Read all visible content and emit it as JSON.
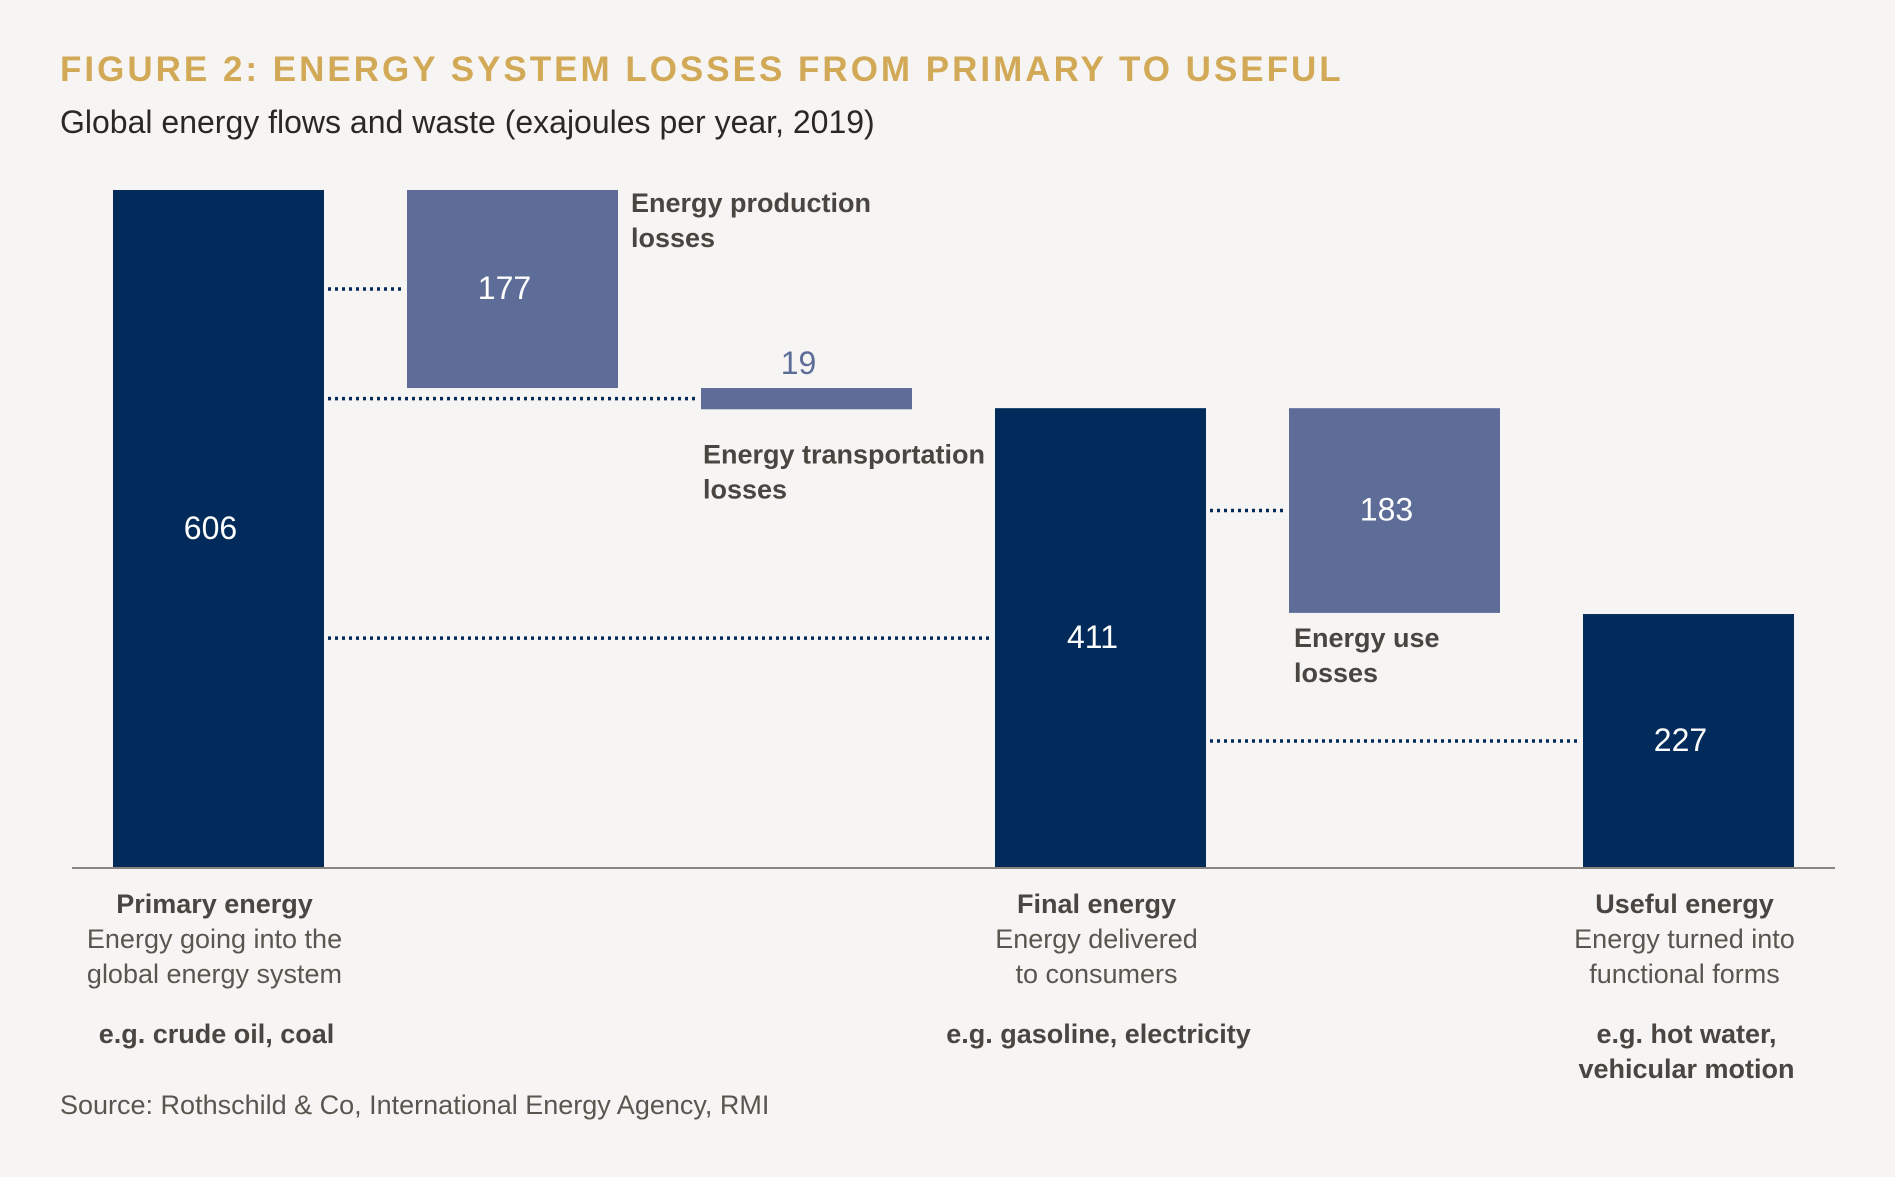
{
  "title": "FIGURE 2: ENERGY SYSTEM LOSSES FROM PRIMARY TO USEFUL",
  "subtitle": "Global energy flows and waste (exajoules per year, 2019)",
  "source": "Source: Rothschild & Co, International Energy Agency, RMI",
  "colors": {
    "total_bar": "#022a5a",
    "loss_bar": "#5e6d98",
    "loss_value_text": "#5e6d98",
    "title": "#d2a956",
    "text": "#4a4540",
    "axis": "#8a8580"
  },
  "chart_data": {
    "type": "bar",
    "subtype": "waterfall",
    "unit": "exajoules per year",
    "year": 2019,
    "ylim": [
      0,
      606
    ],
    "steps": [
      {
        "id": "primary",
        "kind": "total",
        "value": 606,
        "label": "Primary energy",
        "description": [
          "Energy going into the",
          "global energy system"
        ],
        "examples": [
          "e.g. crude oil, coal"
        ]
      },
      {
        "id": "production-losses",
        "kind": "loss",
        "value": 177,
        "label": [
          "Energy production",
          "losses"
        ]
      },
      {
        "id": "transportation-losses",
        "kind": "loss",
        "value": 19,
        "label": [
          "Energy transportation",
          "losses"
        ]
      },
      {
        "id": "final",
        "kind": "total",
        "value": 411,
        "label": "Final energy",
        "description": [
          "Energy delivered",
          "to consumers"
        ],
        "examples": [
          "e.g. gasoline, electricity"
        ]
      },
      {
        "id": "use-losses",
        "kind": "loss",
        "value": 183,
        "label": [
          "Energy use",
          "losses"
        ]
      },
      {
        "id": "useful",
        "kind": "total",
        "value": 227,
        "label": "Useful energy",
        "description": [
          "Energy turned into",
          "functional forms"
        ],
        "examples": [
          "e.g. hot water,",
          "vehicular motion"
        ]
      }
    ]
  }
}
